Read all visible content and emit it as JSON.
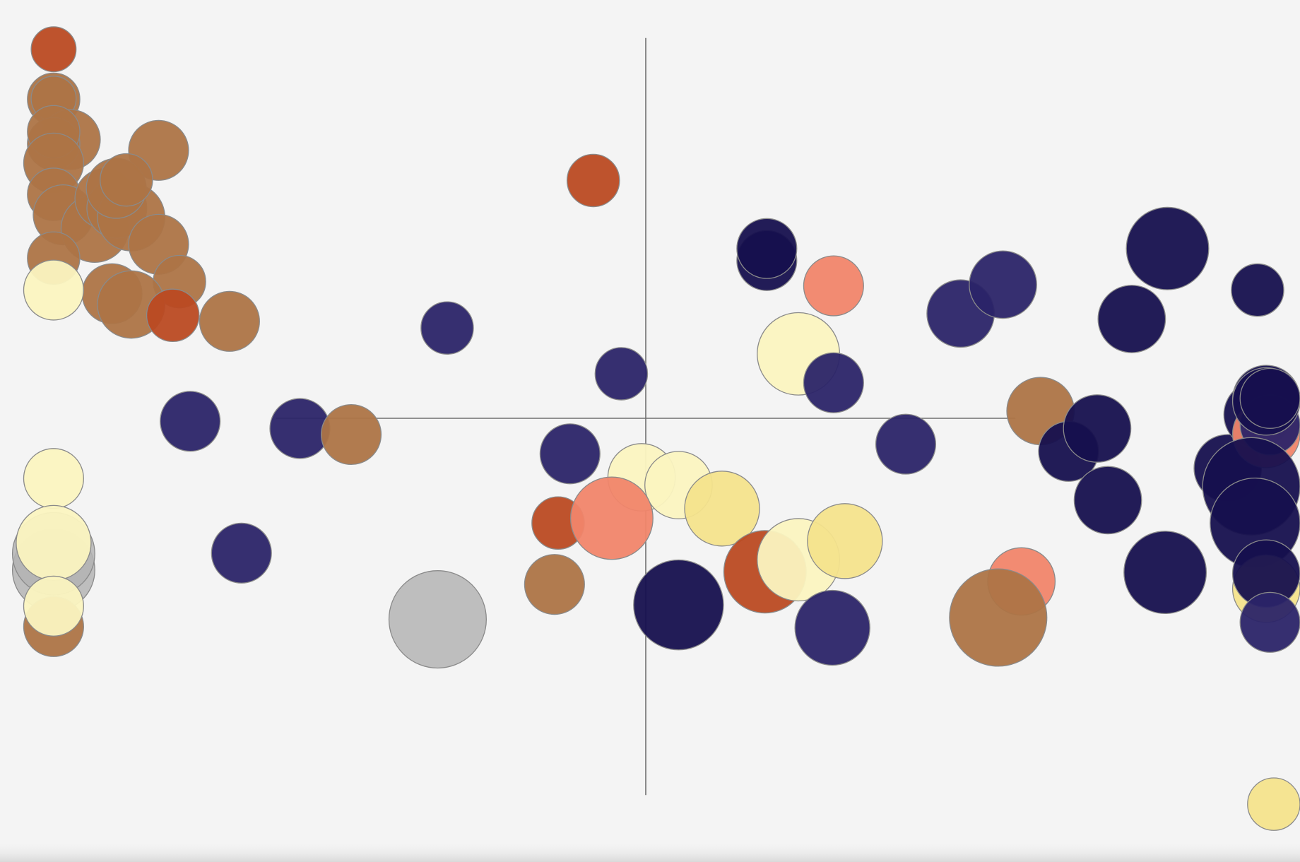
{
  "chart_data": {
    "type": "scatter",
    "title": "",
    "xlabel": "",
    "ylabel": "",
    "xlim": [
      -11,
      11
    ],
    "ylim": [
      -7,
      7
    ],
    "grid": false,
    "legend": "none",
    "axis_crosshair": {
      "x": 0,
      "y": 0,
      "x_extent": [
        -6.2,
        6.2
      ],
      "y_extent": [
        -6.2,
        6.2
      ]
    },
    "palette": {
      "brown": "#ad7446",
      "rust": "#bb4a22",
      "cream": "#fbf4c0",
      "yellow": "#f4e38c",
      "salmon": "#f1856a",
      "navy": "#2b2468",
      "indigo": "#16104e",
      "gray": "#b4b4b4"
    },
    "points": [
      {
        "x": -9.93,
        "y": 6.13,
        "size": 6,
        "color": "rust"
      },
      {
        "x": -9.93,
        "y": 5.3,
        "size": 7,
        "color": "brown"
      },
      {
        "x": -9.93,
        "y": 5.31,
        "size": 6,
        "color": "brown"
      },
      {
        "x": -9.65,
        "y": 4.63,
        "size": 8,
        "color": "brown"
      },
      {
        "x": -9.93,
        "y": 4.56,
        "size": 7,
        "color": "brown"
      },
      {
        "x": -9.93,
        "y": 4.76,
        "size": 7,
        "color": "brown"
      },
      {
        "x": -9.93,
        "y": 4.24,
        "size": 8,
        "color": "brown"
      },
      {
        "x": -8.17,
        "y": 4.45,
        "size": 8,
        "color": "brown"
      },
      {
        "x": -9.93,
        "y": 3.72,
        "size": 7,
        "color": "brown"
      },
      {
        "x": -9.77,
        "y": 3.38,
        "size": 8,
        "color": "brown"
      },
      {
        "x": -9.24,
        "y": 3.15,
        "size": 9,
        "color": "brown"
      },
      {
        "x": -9.07,
        "y": 3.65,
        "size": 8,
        "color": "brown"
      },
      {
        "x": -8.87,
        "y": 3.49,
        "size": 8,
        "color": "brown"
      },
      {
        "x": -8.63,
        "y": 3.34,
        "size": 9,
        "color": "brown"
      },
      {
        "x": -8.88,
        "y": 3.82,
        "size": 8,
        "color": "brown"
      },
      {
        "x": -8.71,
        "y": 3.96,
        "size": 7,
        "color": "brown"
      },
      {
        "x": -8.17,
        "y": 2.89,
        "size": 8,
        "color": "brown"
      },
      {
        "x": -9.93,
        "y": 2.66,
        "size": 7,
        "color": "brown"
      },
      {
        "x": -7.82,
        "y": 2.27,
        "size": 7,
        "color": "brown"
      },
      {
        "x": -8.95,
        "y": 2.07,
        "size": 8,
        "color": "brown"
      },
      {
        "x": -8.63,
        "y": 1.89,
        "size": 9,
        "color": "brown"
      },
      {
        "x": -9.93,
        "y": 2.13,
        "size": 8,
        "color": "cream"
      },
      {
        "x": -7.93,
        "y": 1.71,
        "size": 7,
        "color": "rust"
      },
      {
        "x": -6.98,
        "y": 1.61,
        "size": 8,
        "color": "brown"
      },
      {
        "x": -3.33,
        "y": 1.5,
        "size": 7,
        "color": "navy"
      },
      {
        "x": -0.88,
        "y": 3.95,
        "size": 7,
        "color": "rust"
      },
      {
        "x": -0.41,
        "y": 0.74,
        "size": 7,
        "color": "navy"
      },
      {
        "x": -7.64,
        "y": -0.05,
        "size": 8,
        "color": "navy"
      },
      {
        "x": -5.8,
        "y": -0.17,
        "size": 8,
        "color": "navy"
      },
      {
        "x": -4.94,
        "y": -0.27,
        "size": 8,
        "color": "brown"
      },
      {
        "x": -9.93,
        "y": -1.0,
        "size": 8,
        "color": "cream"
      },
      {
        "x": -9.93,
        "y": -2.52,
        "size": 11,
        "color": "gray"
      },
      {
        "x": -9.93,
        "y": -2.25,
        "size": 11,
        "color": "gray"
      },
      {
        "x": -9.93,
        "y": -2.07,
        "size": 10,
        "color": "cream"
      },
      {
        "x": -6.78,
        "y": -2.24,
        "size": 8,
        "color": "navy"
      },
      {
        "x": -9.93,
        "y": -3.46,
        "size": 8,
        "color": "brown"
      },
      {
        "x": -9.93,
        "y": -3.12,
        "size": 8,
        "color": "cream"
      },
      {
        "x": -3.49,
        "y": -3.34,
        "size": 13,
        "color": "gray"
      },
      {
        "x": -1.27,
        "y": -0.59,
        "size": 8,
        "color": "navy"
      },
      {
        "x": -0.07,
        "y": -0.98,
        "size": 9,
        "color": "cream"
      },
      {
        "x": 0.55,
        "y": -1.11,
        "size": 9,
        "color": "cream"
      },
      {
        "x": 1.28,
        "y": -1.5,
        "size": 10,
        "color": "yellow"
      },
      {
        "x": -1.47,
        "y": -1.74,
        "size": 7,
        "color": "rust"
      },
      {
        "x": -0.57,
        "y": -1.66,
        "size": 11,
        "color": "salmon"
      },
      {
        "x": -1.53,
        "y": -2.76,
        "size": 8,
        "color": "brown"
      },
      {
        "x": 0.55,
        "y": -3.1,
        "size": 12,
        "color": "indigo"
      },
      {
        "x": 2.0,
        "y": -2.55,
        "size": 11,
        "color": "rust"
      },
      {
        "x": 2.56,
        "y": -2.35,
        "size": 11,
        "color": "cream"
      },
      {
        "x": 3.34,
        "y": -2.04,
        "size": 10,
        "color": "yellow"
      },
      {
        "x": 3.13,
        "y": -3.48,
        "size": 10,
        "color": "navy"
      },
      {
        "x": 2.03,
        "y": 2.62,
        "size": 8,
        "color": "indigo"
      },
      {
        "x": 2.03,
        "y": 2.82,
        "size": 8,
        "color": "indigo"
      },
      {
        "x": 3.15,
        "y": 2.2,
        "size": 8,
        "color": "salmon"
      },
      {
        "x": 2.56,
        "y": 1.07,
        "size": 11,
        "color": "cream"
      },
      {
        "x": 3.15,
        "y": 0.59,
        "size": 8,
        "color": "navy"
      },
      {
        "x": 4.36,
        "y": -0.43,
        "size": 8,
        "color": "navy"
      },
      {
        "x": 5.28,
        "y": 1.74,
        "size": 9,
        "color": "navy"
      },
      {
        "x": 5.99,
        "y": 2.22,
        "size": 9,
        "color": "navy"
      },
      {
        "x": 6.62,
        "y": 0.12,
        "size": 9,
        "color": "brown"
      },
      {
        "x": 7.09,
        "y": -0.55,
        "size": 8,
        "color": "indigo"
      },
      {
        "x": 7.57,
        "y": -0.17,
        "size": 9,
        "color": "indigo"
      },
      {
        "x": 6.3,
        "y": -2.71,
        "size": 9,
        "color": "salmon"
      },
      {
        "x": 5.91,
        "y": -3.31,
        "size": 13,
        "color": "brown"
      },
      {
        "x": 8.75,
        "y": 2.82,
        "size": 11,
        "color": "indigo"
      },
      {
        "x": 8.15,
        "y": 1.65,
        "size": 9,
        "color": "indigo"
      },
      {
        "x": 10.26,
        "y": 2.13,
        "size": 7,
        "color": "indigo"
      },
      {
        "x": 7.75,
        "y": -1.36,
        "size": 9,
        "color": "indigo"
      },
      {
        "x": 9.76,
        "y": -0.83,
        "size": 9,
        "color": "indigo"
      },
      {
        "x": 8.71,
        "y": -2.56,
        "size": 11,
        "color": "indigo"
      },
      {
        "x": 10.26,
        "y": 0.06,
        "size": 9,
        "color": "indigo"
      },
      {
        "x": 10.48,
        "y": 0.32,
        "size": 9,
        "color": "indigo"
      },
      {
        "x": 10.75,
        "y": -0.26,
        "size": 9,
        "color": "salmon"
      },
      {
        "x": 10.75,
        "y": -0.11,
        "size": 8,
        "color": "navy"
      },
      {
        "x": 10.75,
        "y": 0.28,
        "size": 9,
        "color": "indigo"
      },
      {
        "x": 10.75,
        "y": 0.33,
        "size": 8,
        "color": "indigo"
      },
      {
        "x": 10.75,
        "y": -1.13,
        "size": 13,
        "color": "indigo"
      },
      {
        "x": 10.75,
        "y": -1.74,
        "size": 12,
        "color": "indigo"
      },
      {
        "x": 10.75,
        "y": -2.83,
        "size": 9,
        "color": "yellow"
      },
      {
        "x": 10.75,
        "y": -2.58,
        "size": 9,
        "color": "indigo"
      },
      {
        "x": 10.75,
        "y": -3.39,
        "size": 8,
        "color": "navy"
      },
      {
        "x": 10.75,
        "y": -6.41,
        "size": 7,
        "color": "yellow"
      }
    ]
  }
}
